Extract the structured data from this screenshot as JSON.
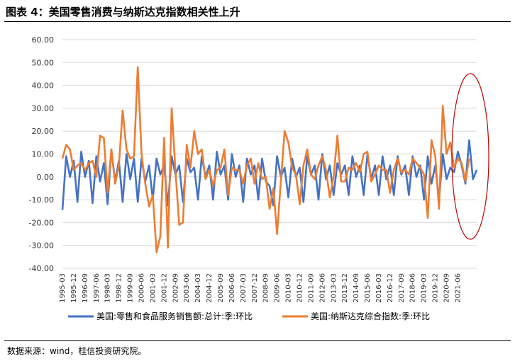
{
  "figure": {
    "title": "图表 4：美国零售消费与纳斯达克指数相关性上升",
    "source": "数据来源：wind，桂信投资研究院。"
  },
  "chart_data": {
    "type": "line",
    "ylim": [
      -40,
      60
    ],
    "yticks": [
      "60.00",
      "50.00",
      "40.00",
      "30.00",
      "20.00",
      "10.00",
      "0.00",
      "-10.00",
      "-20.00",
      "-30.00",
      "-40.00"
    ],
    "ytick_values": [
      60,
      50,
      40,
      30,
      20,
      10,
      0,
      -10,
      -20,
      -30,
      -40
    ],
    "x_start": "1995-03",
    "x_step_months": 3,
    "xtick_labels": [
      "1995-03",
      "1995-12",
      "1996-09",
      "1997-06",
      "1998-03",
      "1998-12",
      "1999-09",
      "2000-06",
      "2001-03",
      "2001-12",
      "2002-09",
      "2003-06",
      "2004-03",
      "2004-12",
      "2005-09",
      "2006-06",
      "2007-03",
      "2007-12",
      "2008-09",
      "2009-06",
      "2010-03",
      "2010-12",
      "2011-09",
      "2012-06",
      "2013-03",
      "2013-12",
      "2014-09",
      "2015-06",
      "2016-03",
      "2016-12",
      "2017-09",
      "2018-06",
      "2019-03",
      "2019-12",
      "2020-09",
      "2021-06"
    ],
    "grid": "horizontal",
    "legend_position": "bottom",
    "series": [
      {
        "name": "美国:零售和食品服务销售额:总计:季:环比",
        "color": "#4472C4",
        "values": [
          -14.5,
          9,
          0,
          7,
          -11,
          11,
          0,
          7,
          -11.5,
          9,
          -2,
          6,
          -12,
          12,
          -2,
          7,
          -11,
          10,
          -1,
          8,
          -11,
          8,
          -2,
          5,
          -10,
          8,
          1,
          5,
          -12.5,
          9,
          1,
          5,
          -11,
          8,
          2,
          4,
          -10,
          9,
          0,
          5,
          -10,
          11,
          1,
          5,
          -10,
          10,
          0,
          5,
          -11,
          8,
          1,
          5,
          -10,
          8,
          -2,
          -4,
          -12.5,
          9,
          0,
          4,
          -9,
          8,
          0,
          4,
          -11,
          9,
          1,
          5,
          -10,
          10,
          -1,
          5,
          -8,
          6,
          1,
          5,
          -8,
          9,
          0,
          5,
          -8,
          10,
          -1,
          5,
          -8,
          9,
          -1,
          5,
          -8,
          9,
          1,
          5,
          -8,
          9,
          0,
          5,
          -10,
          9,
          -3,
          5,
          -10,
          10,
          -1,
          4,
          2,
          11,
          5,
          -3,
          16,
          -1,
          3
        ],
        "visible_max": 16
      },
      {
        "name": "美国:纳斯达克综合指数:季:环比",
        "color": "#ED7D31",
        "values": [
          8,
          14,
          12,
          3,
          5,
          6,
          3,
          6,
          7,
          0,
          18,
          17,
          -7,
          12,
          -3,
          5,
          29,
          12,
          8,
          9,
          48,
          10,
          -3,
          -13,
          -8,
          -33,
          -26,
          17,
          -31,
          30,
          3,
          -21,
          -20,
          14,
          4,
          20,
          10,
          12,
          -1,
          3,
          -4,
          3,
          4,
          12,
          -8,
          4,
          3,
          3,
          -3,
          5,
          8,
          -3,
          6,
          -1,
          0,
          -14,
          -5,
          -25,
          -2,
          20,
          15,
          4,
          1,
          -12,
          5,
          12,
          1,
          -1,
          5,
          9,
          3,
          -9,
          0,
          18,
          -2,
          -2,
          4,
          3,
          6,
          2,
          10,
          11,
          -2,
          1,
          5,
          3,
          3,
          -7,
          3,
          8,
          2,
          3,
          1,
          8,
          6,
          4,
          1,
          -18,
          16,
          9,
          -14,
          31,
          10,
          15,
          4,
          8,
          6,
          -2,
          8
        ]
      }
    ]
  }
}
